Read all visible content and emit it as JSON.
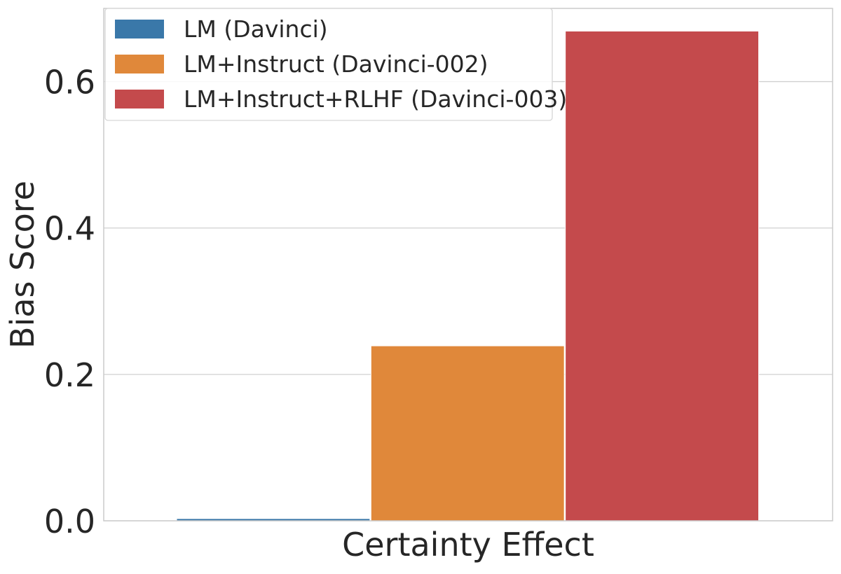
{
  "chart_data": {
    "type": "bar",
    "categories": [
      "Certainty Effect"
    ],
    "xlabel": "Certainty Effect",
    "ylabel": "Bias Score",
    "ylim": [
      0,
      0.7
    ],
    "yticks": [
      0.0,
      0.2,
      0.4,
      0.6
    ],
    "ytick_labels": [
      "0.0",
      "0.2",
      "0.4",
      "0.6"
    ],
    "grid": true,
    "legend_position": "top-left",
    "series": [
      {
        "name": "LM (Davinci)",
        "values": [
          0.003
        ],
        "color": "#3a78a9"
      },
      {
        "name": "LM+Instruct (Davinci-002)",
        "values": [
          0.239
        ],
        "color": "#e0883a"
      },
      {
        "name": "LM+Instruct+RLHF (Davinci-003)",
        "values": [
          0.669
        ],
        "color": "#c44a4c"
      }
    ]
  }
}
